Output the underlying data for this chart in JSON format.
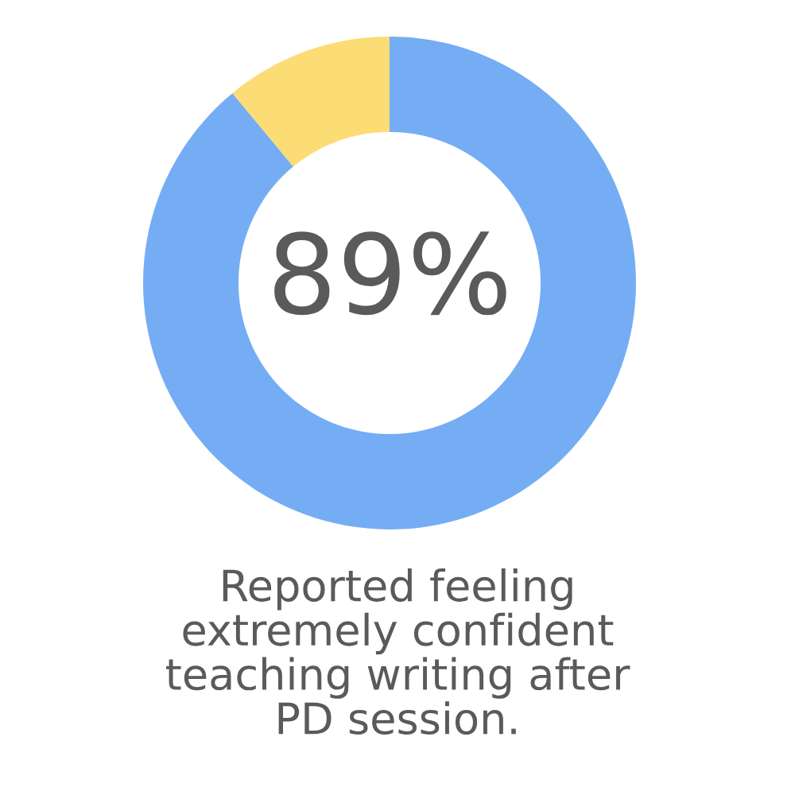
{
  "chart_data": {
    "type": "donut",
    "categories": [
      null,
      null
    ],
    "values": [
      89,
      11
    ],
    "colors": [
      "#75adf4",
      "#fcdc74"
    ],
    "value_labels": [
      "89%",
      null
    ],
    "annotations": [
      "Reported feeling\nextremely confident\nteaching writing after\nPD session."
    ]
  }
}
